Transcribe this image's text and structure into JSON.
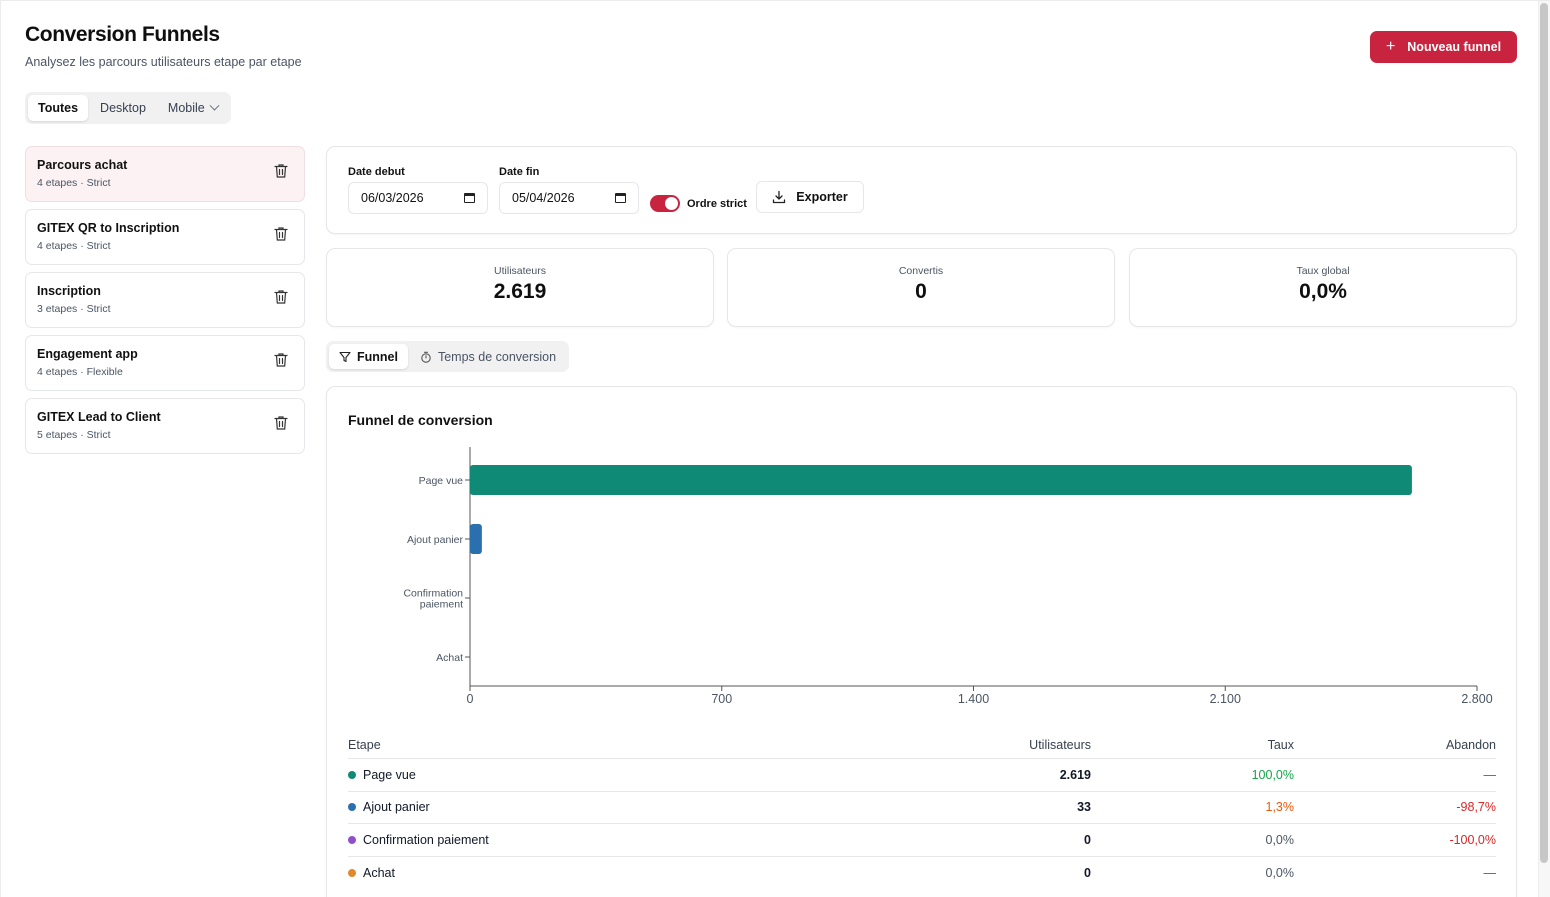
{
  "header": {
    "title": "Conversion Funnels",
    "subtitle": "Analysez les parcours utilisateurs etape par etape",
    "new_button": "Nouveau funnel"
  },
  "device_filter": {
    "options": [
      "Toutes",
      "Desktop",
      "Mobile"
    ],
    "active": "Toutes"
  },
  "funnels": [
    {
      "name": "Parcours achat",
      "meta": "4 etapes · Strict",
      "active": true
    },
    {
      "name": "GITEX QR to Inscription",
      "meta": "4 etapes · Strict",
      "active": false
    },
    {
      "name": "Inscription",
      "meta": "3 etapes · Strict",
      "active": false
    },
    {
      "name": "Engagement app",
      "meta": "4 etapes · Flexible",
      "active": false
    },
    {
      "name": "GITEX Lead to Client",
      "meta": "5 etapes · Strict",
      "active": false
    }
  ],
  "filters": {
    "start_label": "Date debut",
    "start_value": "06/03/2026",
    "end_label": "Date fin",
    "end_value": "05/04/2026",
    "strict_label": "Ordre strict",
    "strict_on": true,
    "export_label": "Exporter"
  },
  "stats": [
    {
      "label": "Utilisateurs",
      "value": "2.619"
    },
    {
      "label": "Convertis",
      "value": "0"
    },
    {
      "label": "Taux global",
      "value": "0,0%"
    }
  ],
  "view_tabs": {
    "funnel": "Funnel",
    "time": "Temps de conversion",
    "active": "funnel"
  },
  "chart_data": {
    "type": "bar",
    "orientation": "horizontal",
    "title": "Funnel de conversion",
    "categories": [
      "Page vue",
      "Ajout panier",
      "Confirmation paiement",
      "Achat"
    ],
    "category_label_lines": [
      [
        "Page vue"
      ],
      [
        "Ajout panier"
      ],
      [
        "Confirmation",
        "paiement"
      ],
      [
        "Achat"
      ]
    ],
    "values": [
      2619,
      33,
      0,
      0
    ],
    "colors": [
      "#0e8a76",
      "#2a6fae",
      "#8e51c9",
      "#e08a2c"
    ],
    "xlim": [
      0,
      2800
    ],
    "xticks": [
      0,
      700,
      1400,
      2100,
      2800
    ],
    "xtick_labels": [
      "0",
      "700",
      "1.400",
      "2.100",
      "2.800"
    ],
    "grid": false,
    "xlabel": "",
    "ylabel": ""
  },
  "table": {
    "headers": {
      "etape": "Etape",
      "users": "Utilisateurs",
      "taux": "Taux",
      "abandon": "Abandon"
    },
    "rows": [
      {
        "etape": "Page vue",
        "color": "#0e8a76",
        "users": "2.619",
        "taux": "100,0%",
        "taux_color": "#16a34a",
        "abandon": "—",
        "abandon_color": "#dc2626"
      },
      {
        "etape": "Ajout panier",
        "color": "#2a6fae",
        "users": "33",
        "taux": "1,3%",
        "taux_color": "#ea580c",
        "abandon": "-98,7%",
        "abandon_color": "#dc2626"
      },
      {
        "etape": "Confirmation paiement",
        "color": "#8e51c9",
        "users": "0",
        "taux": "0,0%",
        "taux_color": "#4b5563",
        "abandon": "-100,0%",
        "abandon_color": "#dc2626"
      },
      {
        "etape": "Achat",
        "color": "#e08a2c",
        "users": "0",
        "taux": "0,0%",
        "taux_color": "#4b5563",
        "abandon": "—",
        "abandon_color": "#dc2626"
      }
    ]
  },
  "icons": {
    "trash": "trash-icon",
    "calendar": "calendar-icon",
    "download": "download-icon",
    "filter": "filter-icon",
    "timer": "timer-icon",
    "plus": "plus-icon",
    "chevron": "chevron-down-icon"
  },
  "colors": {
    "accent": "#c8243f",
    "active_card": "#fcf2f3"
  }
}
